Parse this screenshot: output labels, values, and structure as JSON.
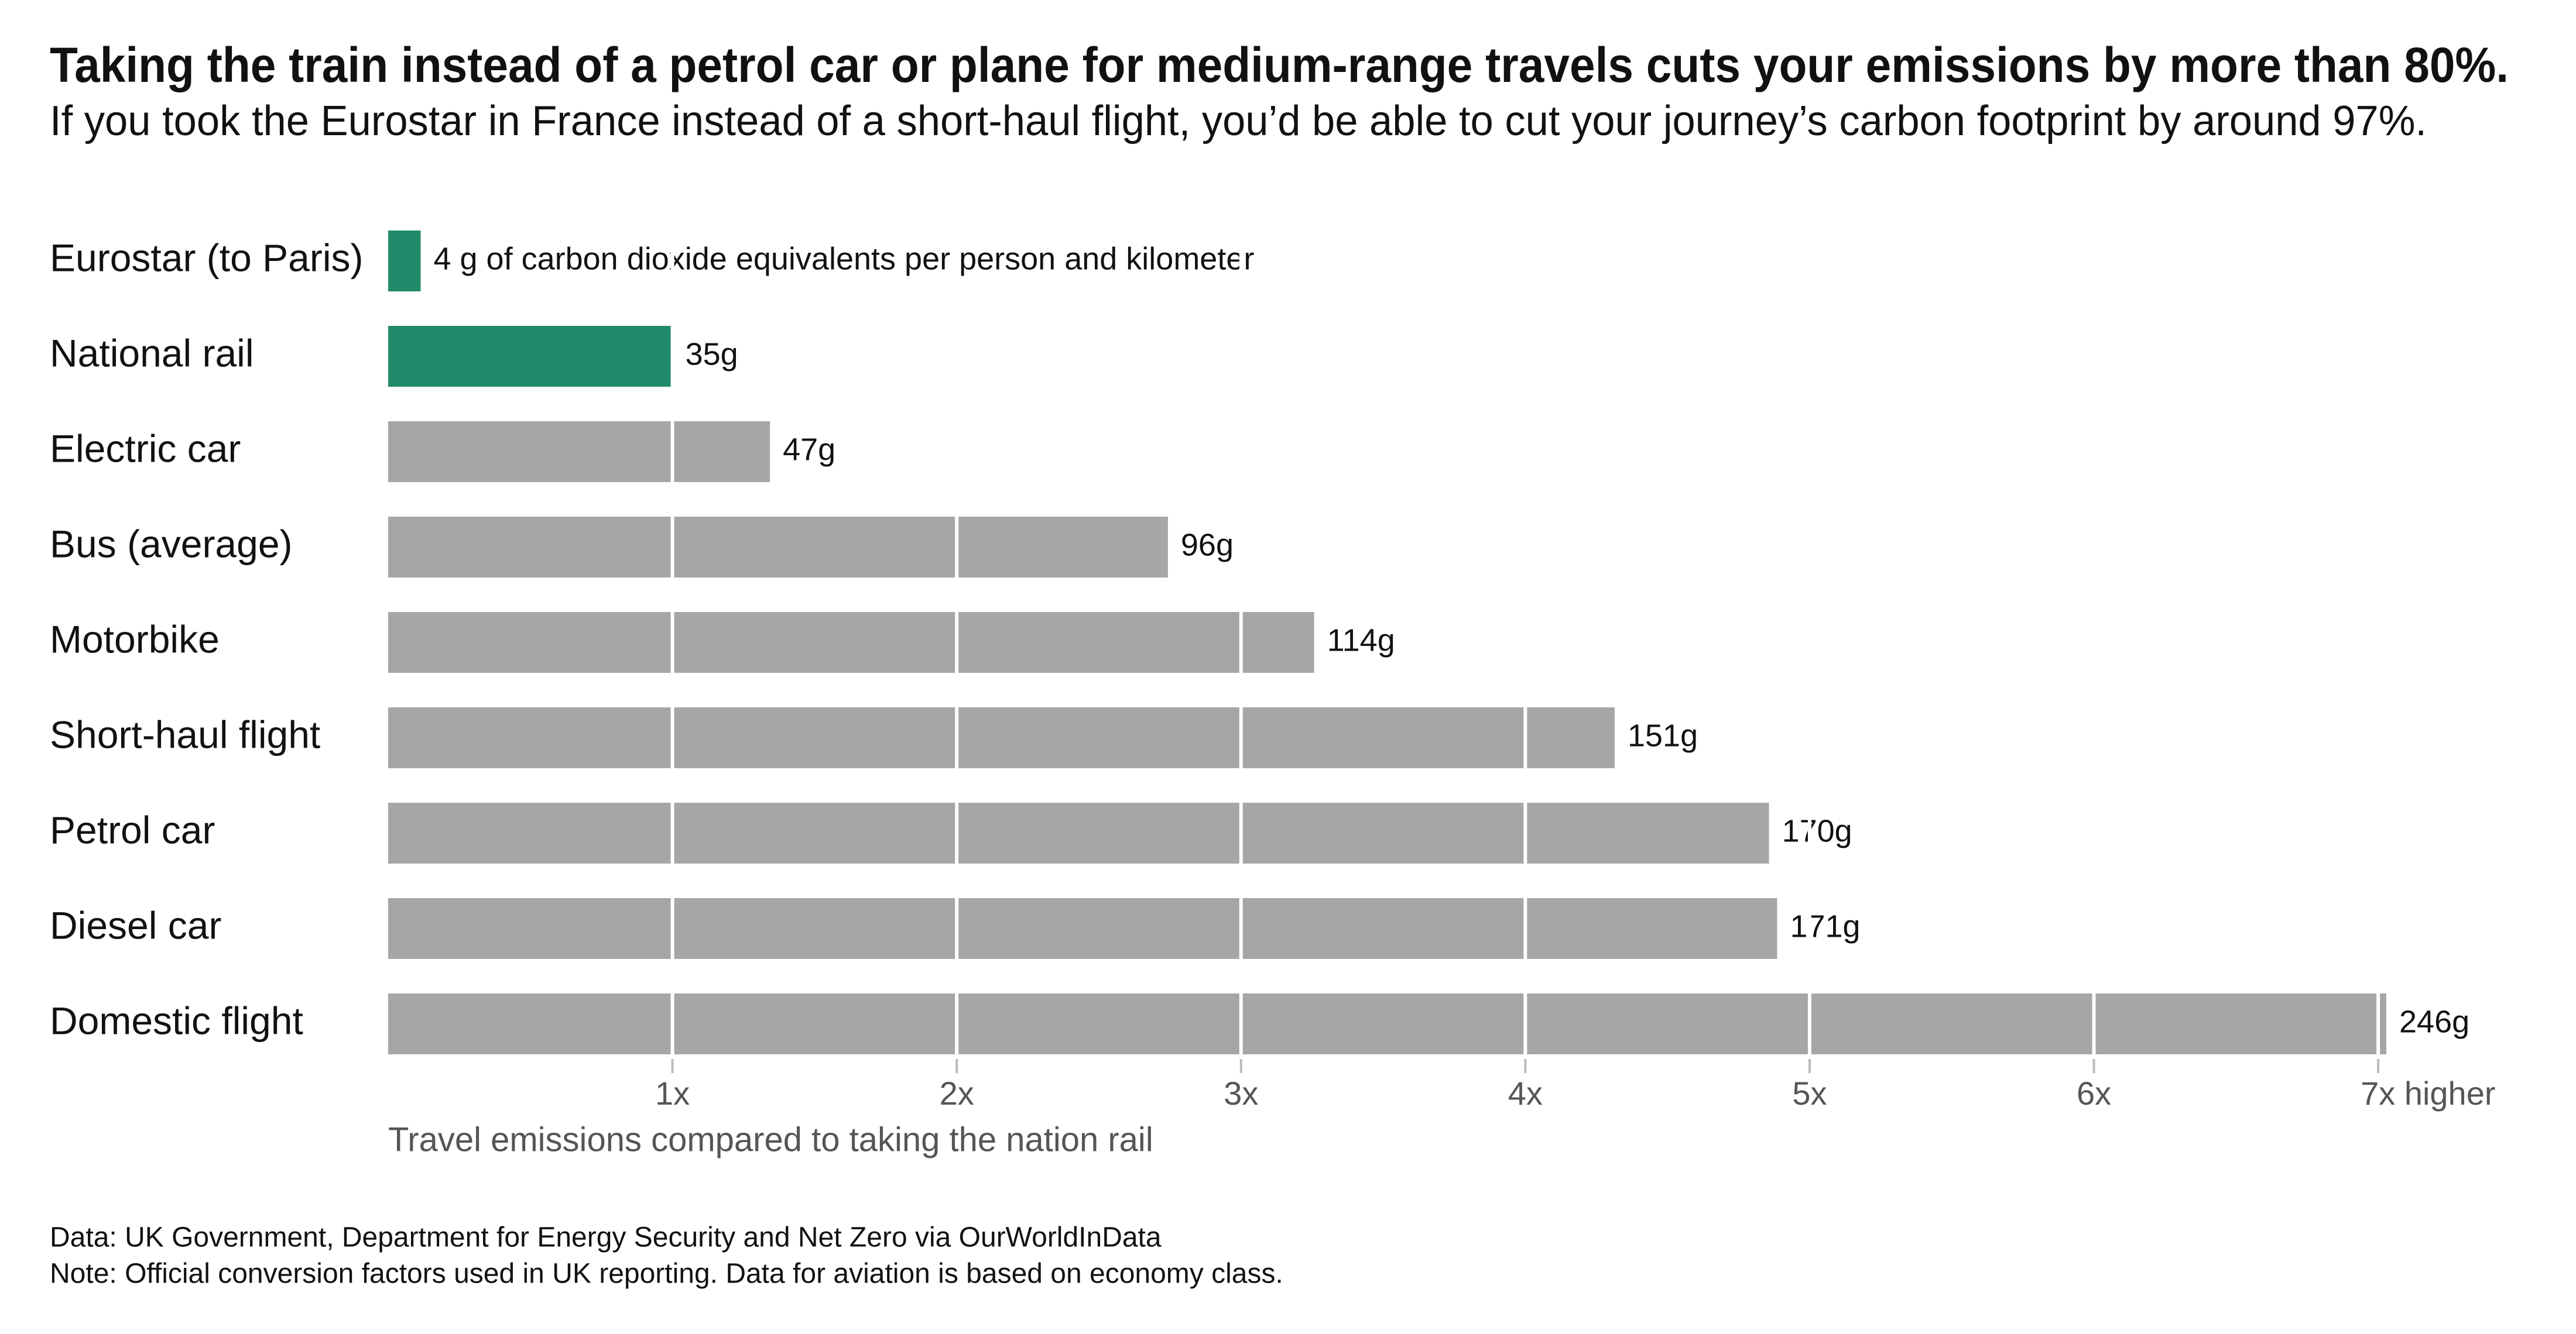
{
  "chart_data": {
    "type": "bar",
    "orientation": "horizontal",
    "title": "Taking the train instead of a petrol car or plane for medium-range travels cuts your emissions by more than 80%.",
    "subtitle": "If you took the Eurostar in France instead of a short-haul flight, you’d be able to cut your journey’s carbon footprint by around 97%.",
    "categories": [
      "Eurostar (to Paris)",
      "National rail",
      "Electric car",
      "Bus (average)",
      "Motorbike",
      "Short-haul flight",
      "Petrol car",
      "Diesel car",
      "Domestic flight"
    ],
    "values": [
      4,
      35,
      47,
      96,
      114,
      151,
      170,
      171,
      246
    ],
    "value_labels": [
      "4 g of carbon dioxide equivalents per person and kilometer",
      "35g",
      "47g",
      "96g",
      "114g",
      "151g",
      "170g",
      "171g",
      "246g"
    ],
    "colors": [
      "#218a6a",
      "#218a6a",
      "#a6a6a6",
      "#a6a6a6",
      "#a6a6a6",
      "#a6a6a6",
      "#a6a6a6",
      "#a6a6a6",
      "#a6a6a6"
    ],
    "xlim": [
      0,
      246
    ],
    "xticks": [
      {
        "value": 35,
        "label": "1x"
      },
      {
        "value": 70,
        "label": "2x"
      },
      {
        "value": 105,
        "label": "3x"
      },
      {
        "value": 140,
        "label": "4x"
      },
      {
        "value": 175,
        "label": "5x"
      },
      {
        "value": 210,
        "label": "6x"
      },
      {
        "value": 245,
        "label": "7x higher"
      }
    ],
    "xlabel": "Travel emissions compared to taking the nation rail",
    "grid": true,
    "source": "Data: UK Government, Department for Energy Security and Net Zero via OurWorldInData",
    "note": "Note: Official conversion factors used in UK reporting. Data for aviation is based on economy class."
  }
}
